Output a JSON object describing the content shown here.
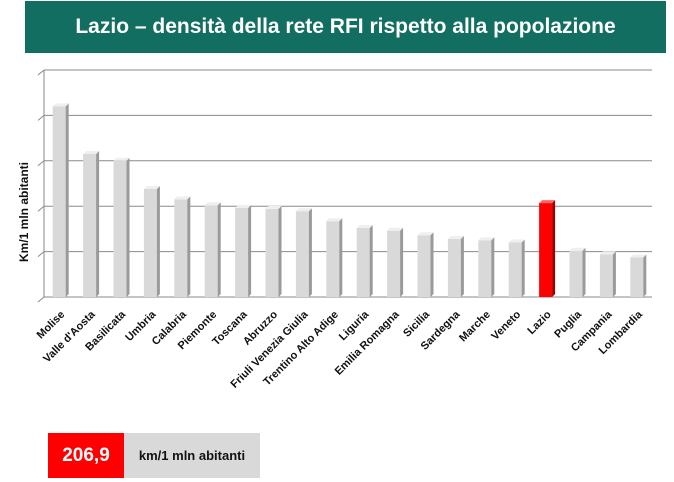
{
  "header": {
    "title": "Lazio – densità della rete RFI rispetto alla popolazione"
  },
  "summary": {
    "value": "206,9",
    "unit": "km/1 mln abitanti"
  },
  "colors": {
    "banner": "#116e61",
    "bar": "#d9d9d9",
    "highlight": "#ff0000"
  },
  "chart_data": {
    "type": "bar",
    "title": "",
    "xlabel": "",
    "ylabel": "Km/1 mln abitanti",
    "ylim": [
      0,
      500
    ],
    "grid": true,
    "legend": "none",
    "highlight": "Lazio",
    "categories": [
      "Molise",
      "Valle d'Aosta",
      "Basilicata",
      "Umbria",
      "Calabria",
      "Piemonte",
      "Toscana",
      "Abruzzo",
      "Friuli Venezia Giulia",
      "Trentino Alto Adige",
      "Liguria",
      "Emilia Romagna",
      "Sicilia",
      "Sardegna",
      "Marche",
      "Veneto",
      "Lazio",
      "Puglia",
      "Campania",
      "Lombardia"
    ],
    "values": [
      420,
      315,
      300,
      238,
      215,
      202,
      196,
      194,
      189,
      167,
      152,
      146,
      136,
      128,
      125,
      120,
      206.9,
      102,
      94,
      87
    ]
  }
}
